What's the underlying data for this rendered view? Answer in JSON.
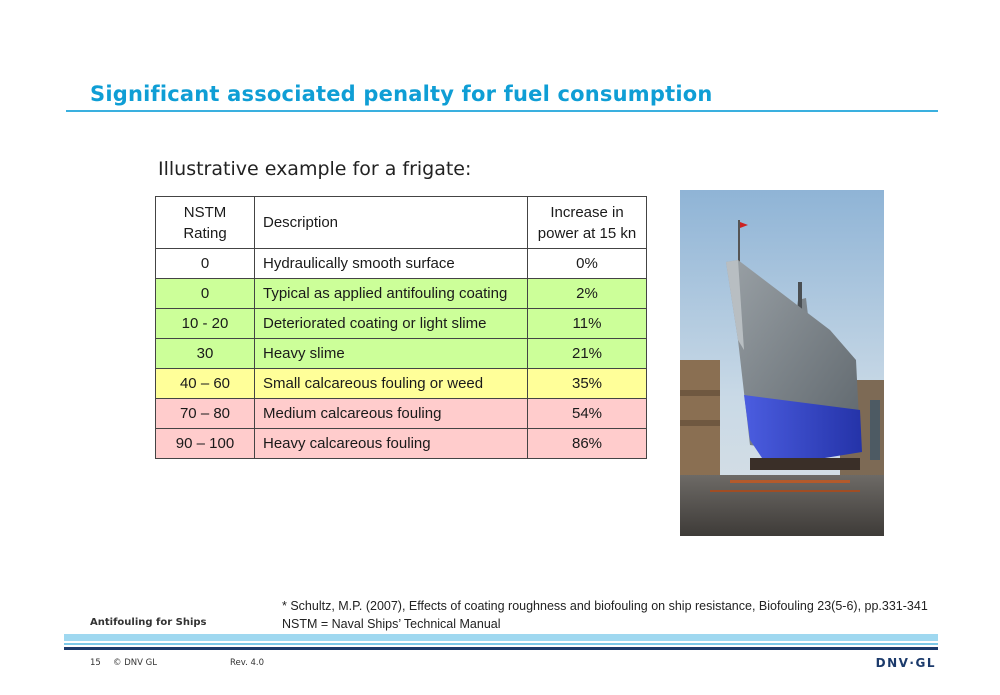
{
  "title": "Significant associated penalty for fuel consumption",
  "subtitle": "Illustrative example for a frigate:",
  "table": {
    "headers": {
      "rating_line1": "NSTM",
      "rating_line2": "Rating",
      "description": "Description",
      "increase_line1": "Increase in",
      "increase_line2": "power at 15 kn"
    },
    "rows": [
      {
        "rating": "0",
        "description": "Hydraulically smooth surface",
        "increase": "0%",
        "color": "#ffffff"
      },
      {
        "rating": "0",
        "description": "Typical as applied antifouling coating",
        "increase": "2%",
        "color": "#ccff99"
      },
      {
        "rating": "10 - 20",
        "description": "Deteriorated coating or light slime",
        "increase": "11%",
        "color": "#ccff99"
      },
      {
        "rating": "30",
        "description": "Heavy slime",
        "increase": "21%",
        "color": "#ccff99"
      },
      {
        "rating": "40 – 60",
        "description": "Small calcareous fouling or weed",
        "increase": "35%",
        "color": "#ffff99"
      },
      {
        "rating": "70 – 80",
        "description": "Medium calcareous fouling",
        "increase": "54%",
        "color": "#ffcccc"
      },
      {
        "rating": "90 – 100",
        "description": "Heavy calcareous fouling",
        "increase": "86%",
        "color": "#ffcccc"
      }
    ]
  },
  "image": {
    "icon": "frigate-drydock-photo"
  },
  "notes": {
    "reference": "* Schultz, M.P. (2007), Effects of coating roughness and biofouling on ship resistance, Biofouling 23(5-6), pp.331-341",
    "abbreviation": "NSTM = Naval Ships’ Technical Manual"
  },
  "footer": {
    "presentation_title": "Antifouling for Ships",
    "page_number": "15",
    "copyright": "© DNV GL",
    "revision": "Rev. 4.0",
    "logo": "DNV·GL"
  },
  "colors": {
    "accent": "#0f9ed5",
    "navy": "#1b3a6b"
  }
}
